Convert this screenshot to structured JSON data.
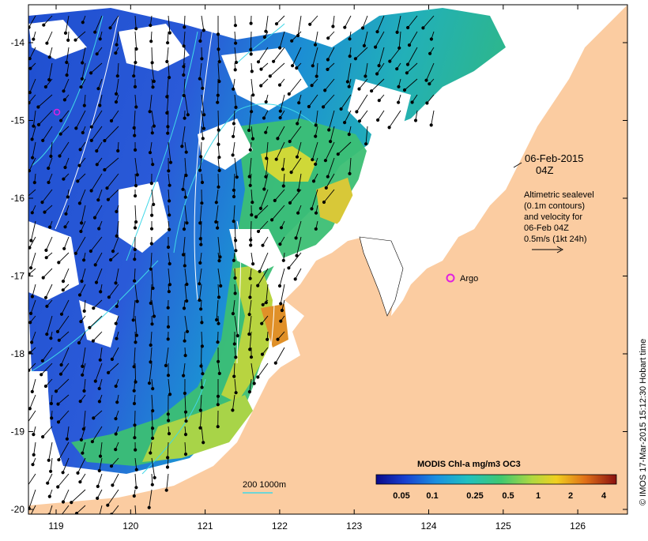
{
  "map": {
    "x_ticks": [
      "119",
      "120",
      "121",
      "122",
      "123",
      "124",
      "125",
      "126"
    ],
    "y_ticks": [
      "-14",
      "-15",
      "-16",
      "-17",
      "-18",
      "-19",
      "-20"
    ],
    "date_line1": "06-Feb-2015",
    "date_line2": "04Z",
    "legend_lines": [
      "Altimetric sealevel",
      "(0.1m contours)",
      "and velocity for",
      "06-Feb 04Z",
      "0.5m/s (1kt 24h)"
    ],
    "argo_label": "Argo",
    "depth_label": "200  1000m",
    "colorbar_title": "MODIS Chl-a mg/m3 OC3",
    "colorbar_ticks": [
      "0.05",
      "0.1",
      "0.25",
      "0.5",
      "1",
      "2",
      "4"
    ],
    "credit": "© IMOS 17-Mar-2015 15:12:30 Hobart time",
    "colors": {
      "land": "#fbcca1",
      "ocean_deep": "#2a58d0",
      "ocean_mid": "#1aa0c8",
      "green": "#3cc070",
      "yellow": "#d0d830",
      "orange": "#e08020",
      "argo": "#e020e0",
      "contour": "#40d8e8"
    }
  }
}
